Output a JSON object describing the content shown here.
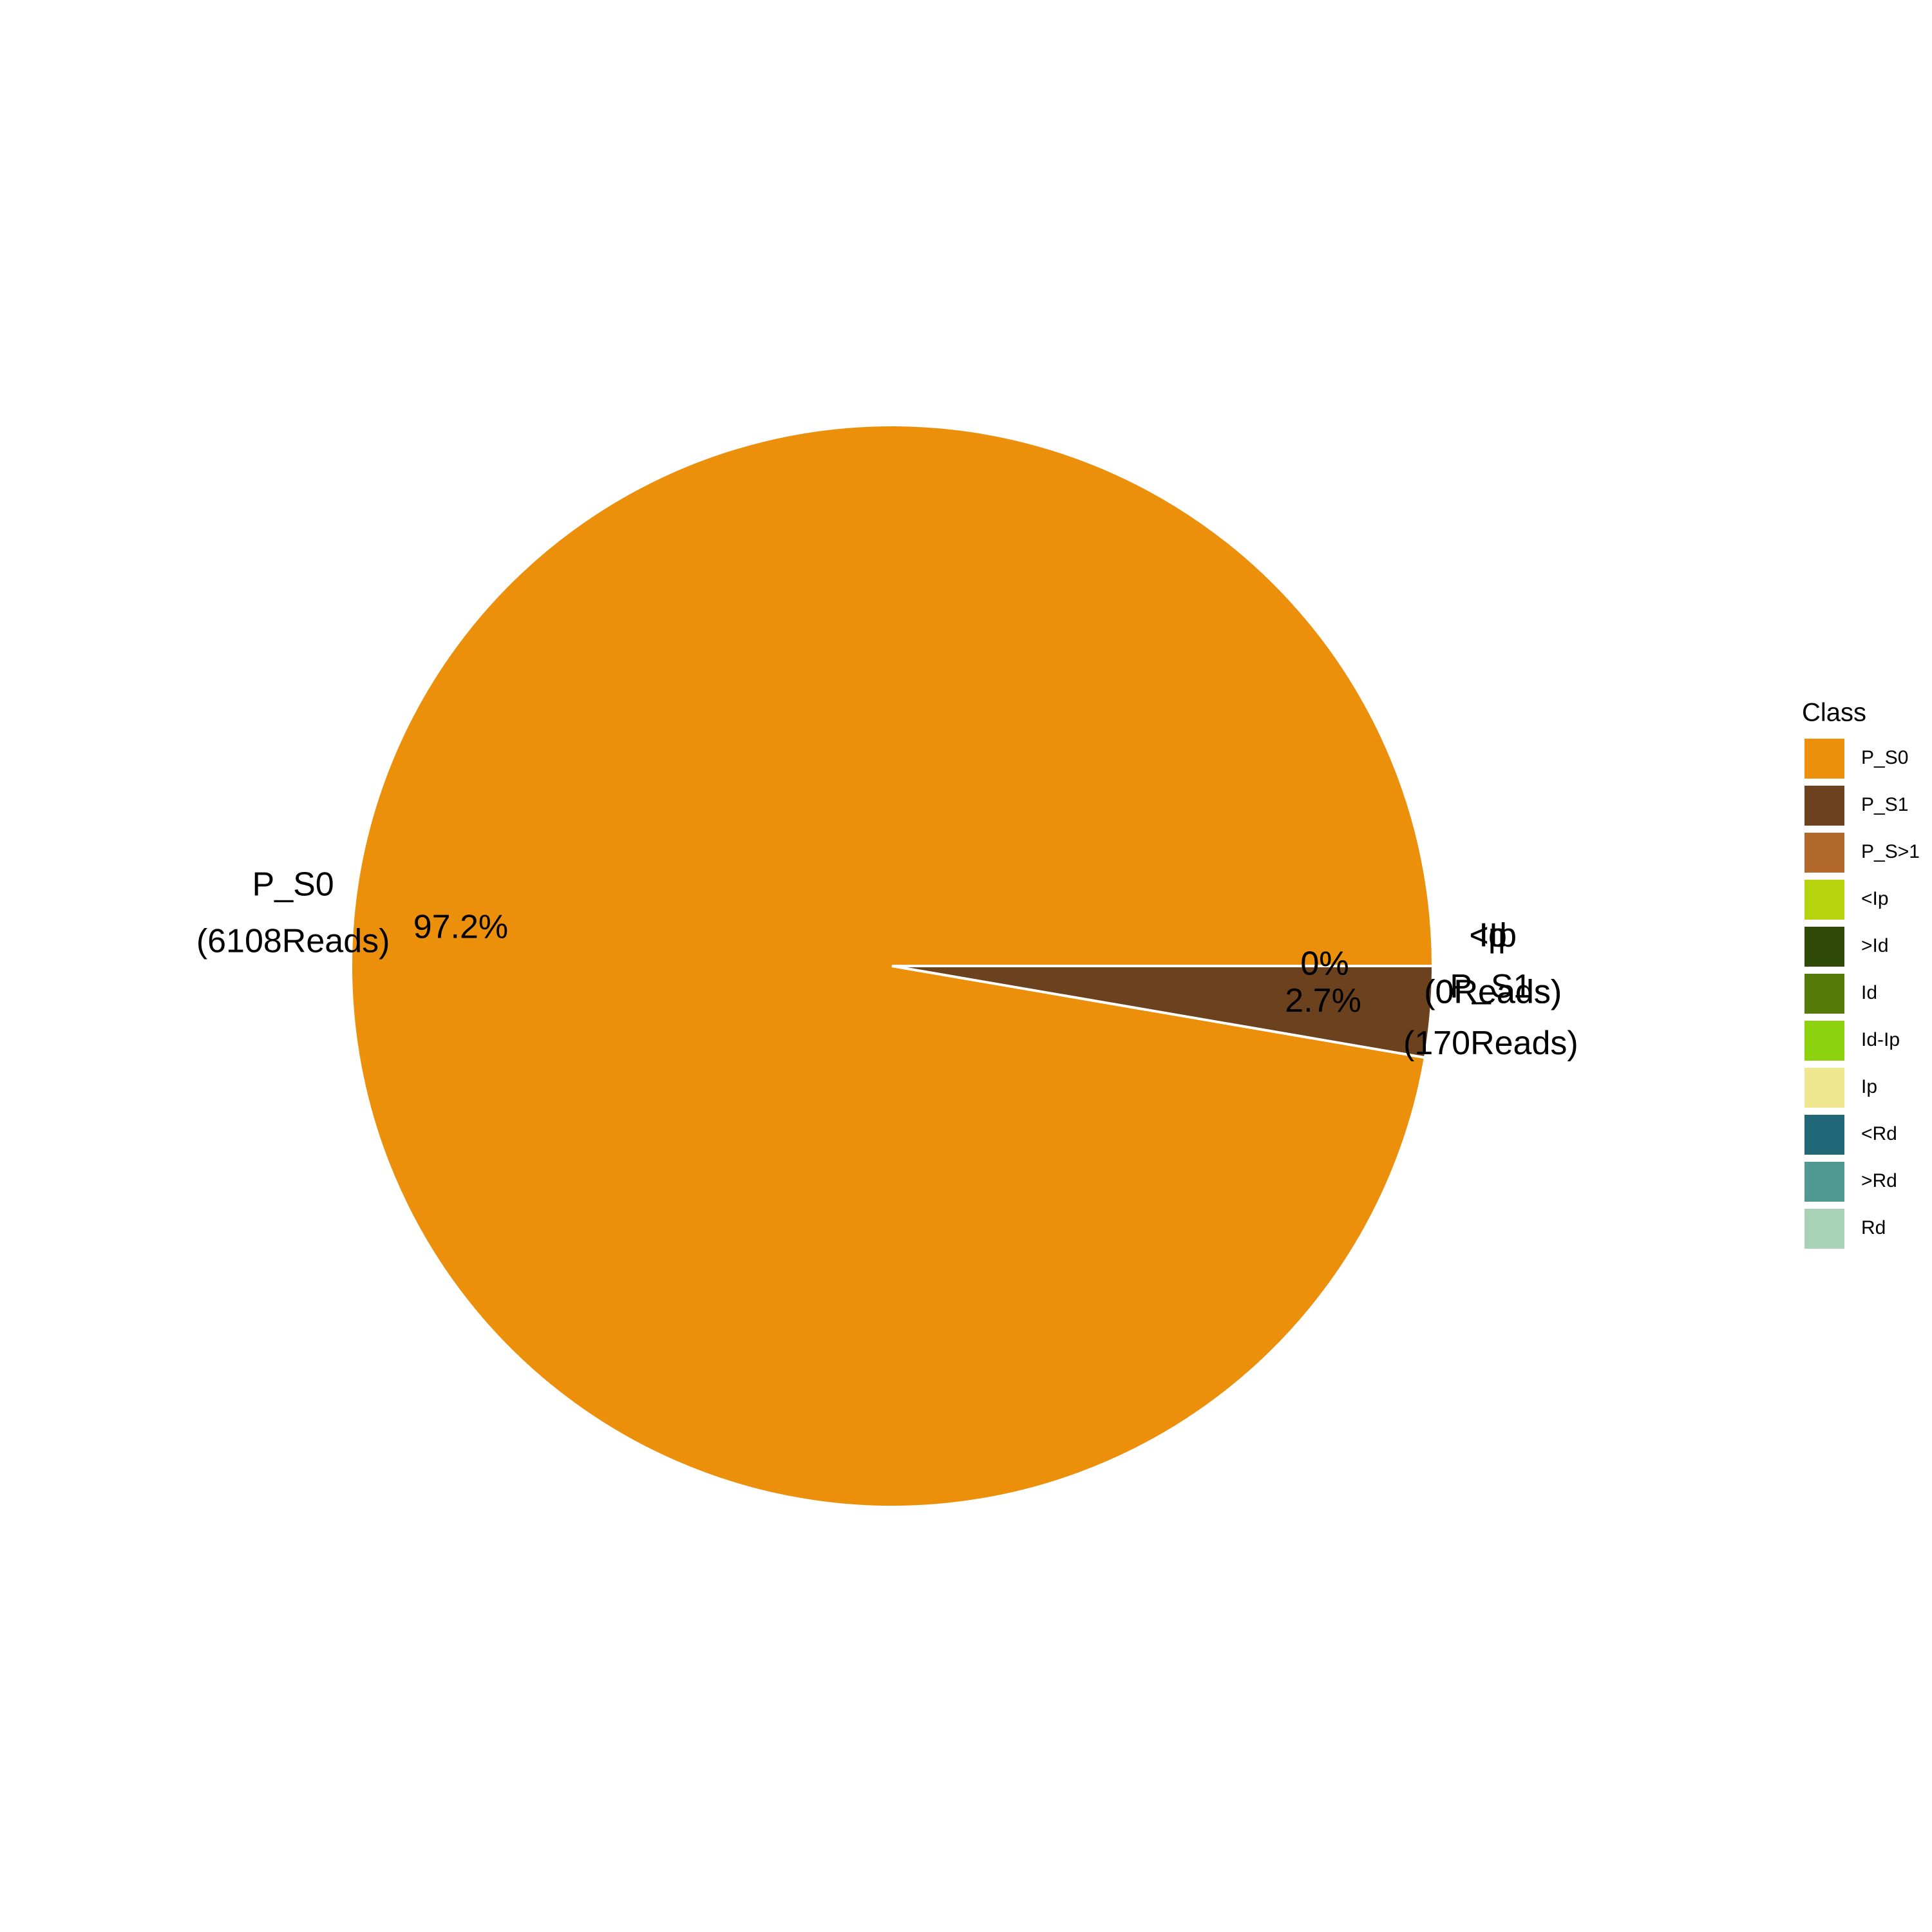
{
  "chart_data": {
    "type": "pie",
    "legend": {
      "title": "Class",
      "placement": "right",
      "entries": [
        {
          "label": "P_S0",
          "color": "#EC8F0B"
        },
        {
          "label": "P_S1",
          "color": "#6C411E"
        },
        {
          "label": "P_S>1",
          "color": "#B3692C"
        },
        {
          "label": "<Ip",
          "color": "#B5D30F"
        },
        {
          "label": ">Id",
          "color": "#2F4A06"
        },
        {
          "label": "Id",
          "color": "#577B08"
        },
        {
          "label": "Id-Ip",
          "color": "#8CD20E"
        },
        {
          "label": "Ip",
          "color": "#EEE78F"
        },
        {
          "label": "<Rd",
          "color": "#206878"
        },
        {
          "label": ">Rd",
          "color": "#519792"
        },
        {
          "label": "Rd",
          "color": "#A7D2B6"
        }
      ]
    },
    "slices": [
      {
        "label": "P_S0",
        "reads": 6108,
        "percent": 97.2,
        "color": "#EC8F0B",
        "name_text": "P_S0",
        "reads_text": "(6108Reads)",
        "pct_text": "97.2%"
      },
      {
        "label": "P_S1",
        "reads": 170,
        "percent": 2.7,
        "color": "#6C411E",
        "name_text": "P_S1",
        "reads_text": "(170Reads)",
        "pct_text": "2.7%"
      },
      {
        "label": "Id",
        "reads": 0,
        "percent": 0,
        "color": "#577B08",
        "name_text": "Id",
        "reads_text": "(0Reads)",
        "pct_text": "0%"
      },
      {
        "label": "Ip",
        "reads": 0,
        "percent": 0,
        "color": "#EEE78F",
        "name_text": "Ip",
        "reads_text": "(0Reads)",
        "pct_text": "0%"
      },
      {
        "label": "<Ip",
        "reads": 0,
        "percent": 0,
        "color": "#B5D30F",
        "name_text": "<Ip",
        "reads_text": "(0Reads)",
        "pct_text": "0%"
      }
    ]
  }
}
